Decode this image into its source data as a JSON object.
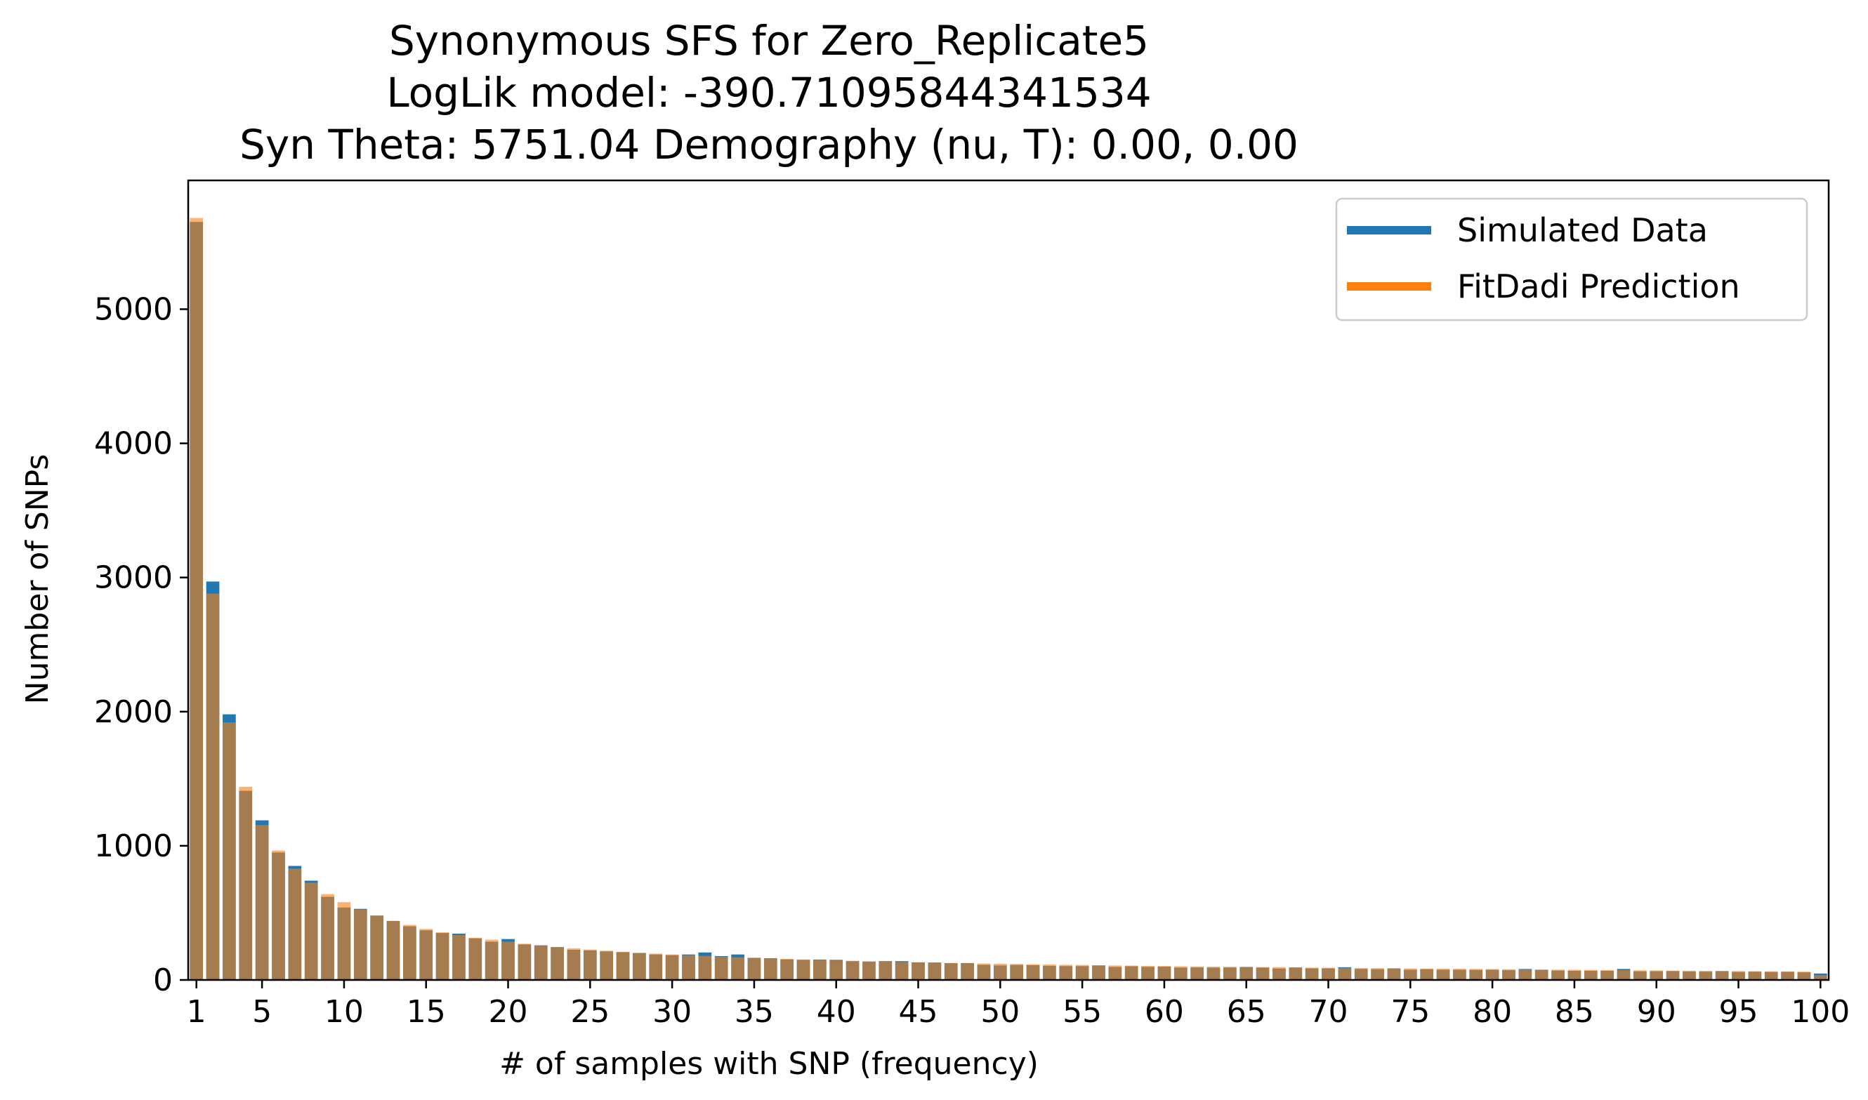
{
  "chart_data": {
    "type": "bar",
    "title_lines": [
      "Synonymous SFS for Zero_Replicate5",
      "LogLik model: -390.710958443415​34",
      "Syn Theta: 5751.04 Demography (nu, T): 0.00, 0.00"
    ],
    "xlabel": "# of samples with SNP (frequency)",
    "ylabel": "Number of SNPs",
    "xlim": [
      0.5,
      100.5
    ],
    "ylim": [
      0,
      5960
    ],
    "xticks": [
      1,
      5,
      10,
      15,
      20,
      25,
      30,
      35,
      40,
      45,
      50,
      55,
      60,
      65,
      70,
      75,
      80,
      85,
      90,
      95,
      100
    ],
    "yticks": [
      0,
      1000,
      2000,
      3000,
      4000,
      5000
    ],
    "legend_position": "top-right",
    "grid": false,
    "colors": {
      "simulated": "#1f77b4",
      "fitdadi": "#ff7f0e",
      "overlap": "#b07e52"
    },
    "x": [
      1,
      2,
      3,
      4,
      5,
      6,
      7,
      8,
      9,
      10,
      11,
      12,
      13,
      14,
      15,
      16,
      17,
      18,
      19,
      20,
      21,
      22,
      23,
      24,
      25,
      26,
      27,
      28,
      29,
      30,
      31,
      32,
      33,
      34,
      35,
      36,
      37,
      38,
      39,
      40,
      41,
      42,
      43,
      44,
      45,
      46,
      47,
      48,
      49,
      50,
      51,
      52,
      53,
      54,
      55,
      56,
      57,
      58,
      59,
      60,
      61,
      62,
      63,
      64,
      65,
      66,
      67,
      68,
      69,
      70,
      71,
      72,
      73,
      74,
      75,
      76,
      77,
      78,
      79,
      80,
      81,
      82,
      83,
      84,
      85,
      86,
      87,
      88,
      89,
      90,
      91,
      92,
      93,
      94,
      95,
      96,
      97,
      98,
      99,
      100
    ],
    "series": [
      {
        "name": "Simulated Data",
        "values": [
          5650,
          2970,
          1980,
          1410,
          1190,
          950,
          850,
          740,
          620,
          540,
          530,
          480,
          440,
          400,
          370,
          350,
          345,
          310,
          285,
          305,
          265,
          258,
          245,
          225,
          220,
          213,
          207,
          200,
          190,
          185,
          190,
          205,
          178,
          190,
          165,
          162,
          153,
          150,
          152,
          150,
          140,
          136,
          140,
          140,
          131,
          130,
          125,
          126,
          113,
          108,
          112,
          110,
          105,
          103,
          103,
          108,
          97,
          102,
          97,
          99,
          92,
          93,
          92,
          93,
          97,
          92,
          85,
          93,
          86,
          86,
          95,
          82,
          80,
          86,
          76,
          80,
          76,
          76,
          75,
          76,
          73,
          82,
          75,
          70,
          68,
          68,
          68,
          82,
          64,
          65,
          66,
          63,
          62,
          66,
          60,
          62,
          60,
          61,
          57,
          48
        ]
      },
      {
        "name": "FitDadi Prediction",
        "values": [
          5680,
          2880,
          1920,
          1440,
          1155,
          965,
          830,
          725,
          640,
          580,
          525,
          480,
          440,
          410,
          380,
          355,
          335,
          315,
          300,
          285,
          270,
          258,
          246,
          236,
          227,
          218,
          210,
          203,
          196,
          190,
          185,
          179,
          174,
          169,
          165,
          161,
          157,
          153,
          150,
          146,
          143,
          140,
          137,
          134,
          132,
          129,
          127,
          125,
          123,
          121,
          119,
          117,
          115,
          113,
          112,
          110,
          108,
          107,
          105,
          104,
          102,
          101,
          99,
          98,
          97,
          96,
          95,
          93,
          92,
          91,
          90,
          89,
          88,
          87,
          86,
          85,
          84,
          83,
          82,
          81,
          80,
          79,
          78,
          77,
          76,
          75,
          74,
          73,
          72,
          71,
          70,
          69,
          68,
          67,
          66,
          65,
          64,
          63,
          62,
          36
        ]
      }
    ]
  }
}
